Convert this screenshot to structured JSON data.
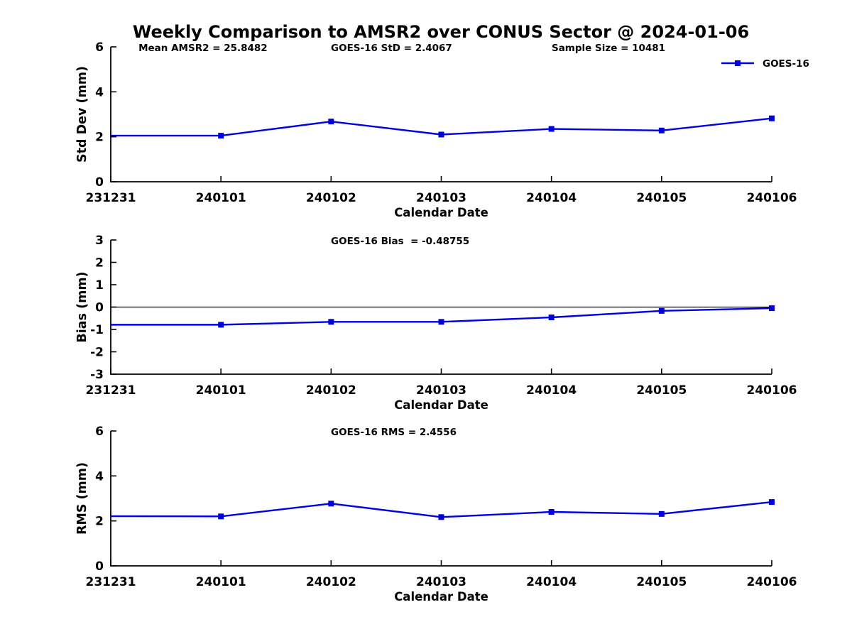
{
  "figure": {
    "title": "Weekly Comparison to AMSR2 over CONUS Sector @ 2024-01-06",
    "background_color": "#ffffff",
    "line_color": "#0000e6",
    "marker_color": "#0000d8",
    "axis_color": "#000000",
    "marker_shape": "square"
  },
  "chart_data": [
    {
      "type": "line",
      "ylabel": "Std Dev (mm)",
      "xlabel": "Calendar Date",
      "categories": [
        "231231",
        "240101",
        "240102",
        "240103",
        "240104",
        "240105",
        "240106"
      ],
      "yticks": [
        0,
        2,
        4,
        6
      ],
      "ylim": [
        0,
        6
      ],
      "grid": false,
      "legend": {
        "label": "GOES-16",
        "position": "top-right"
      },
      "annotations": [
        {
          "text": "Mean AMSR2 = 25.8482"
        },
        {
          "text": "GOES-16 StD = 2.4067"
        },
        {
          "text": "Sample Size = 10481"
        }
      ],
      "series": [
        {
          "name": "GOES-16",
          "values": [
            2.05,
            2.05,
            2.68,
            2.1,
            2.35,
            2.28,
            2.82
          ]
        }
      ]
    },
    {
      "type": "line",
      "ylabel": "Bias (mm)",
      "xlabel": "Calendar Date",
      "categories": [
        "231231",
        "240101",
        "240102",
        "240103",
        "240104",
        "240105",
        "240106"
      ],
      "yticks": [
        -3,
        -2,
        -1,
        0,
        1,
        2,
        3
      ],
      "ylim": [
        -3,
        3
      ],
      "grid": false,
      "zero_line": true,
      "annotations": [
        {
          "text": "GOES-16 Bias  = -0.48755"
        }
      ],
      "series": [
        {
          "name": "GOES-16",
          "values": [
            -0.79,
            -0.79,
            -0.66,
            -0.66,
            -0.46,
            -0.17,
            -0.05
          ]
        }
      ]
    },
    {
      "type": "line",
      "ylabel": "RMS (mm)",
      "xlabel": "Calendar Date",
      "categories": [
        "231231",
        "240101",
        "240102",
        "240103",
        "240104",
        "240105",
        "240106"
      ],
      "yticks": [
        0,
        2,
        4,
        6
      ],
      "ylim": [
        0,
        6
      ],
      "grid": false,
      "annotations": [
        {
          "text": "GOES-16 RMS = 2.4556"
        }
      ],
      "series": [
        {
          "name": "GOES-16",
          "values": [
            2.21,
            2.2,
            2.77,
            2.17,
            2.4,
            2.31,
            2.84
          ]
        }
      ]
    }
  ]
}
